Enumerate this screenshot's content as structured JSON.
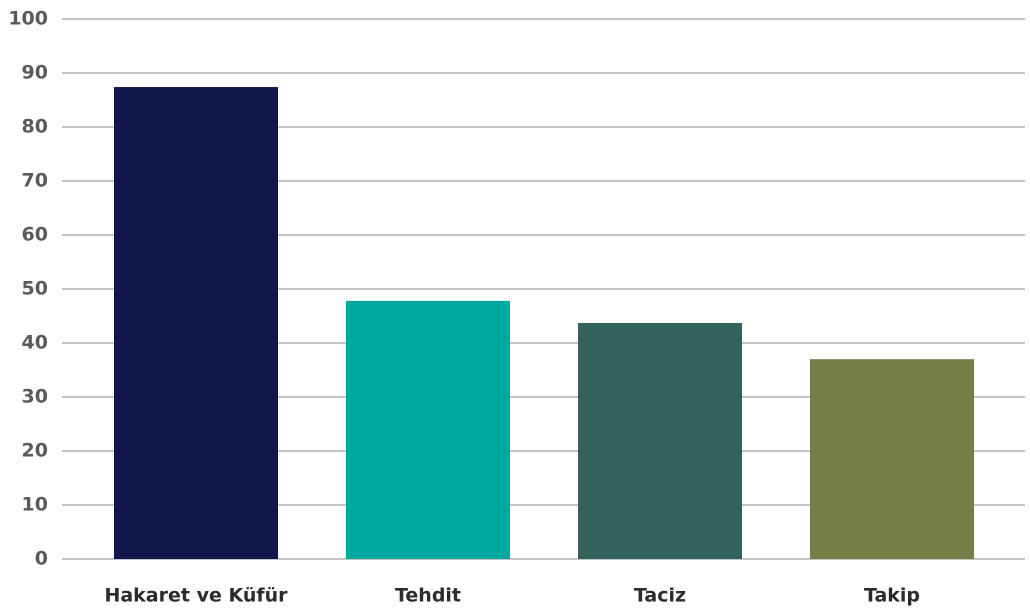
{
  "chart_data": {
    "type": "bar",
    "categories": [
      "Hakaret ve Küfür",
      "Tehdit",
      "Taciz",
      "Takip"
    ],
    "values": [
      87.4,
      47.8,
      43.7,
      37.0
    ],
    "colors": [
      "#12174b",
      "#00a99d",
      "#32625b",
      "#737f47"
    ],
    "ylim": [
      0,
      100
    ],
    "yticks": [
      0,
      10,
      20,
      30,
      40,
      50,
      60,
      70,
      80,
      90,
      100
    ],
    "grid": true
  }
}
